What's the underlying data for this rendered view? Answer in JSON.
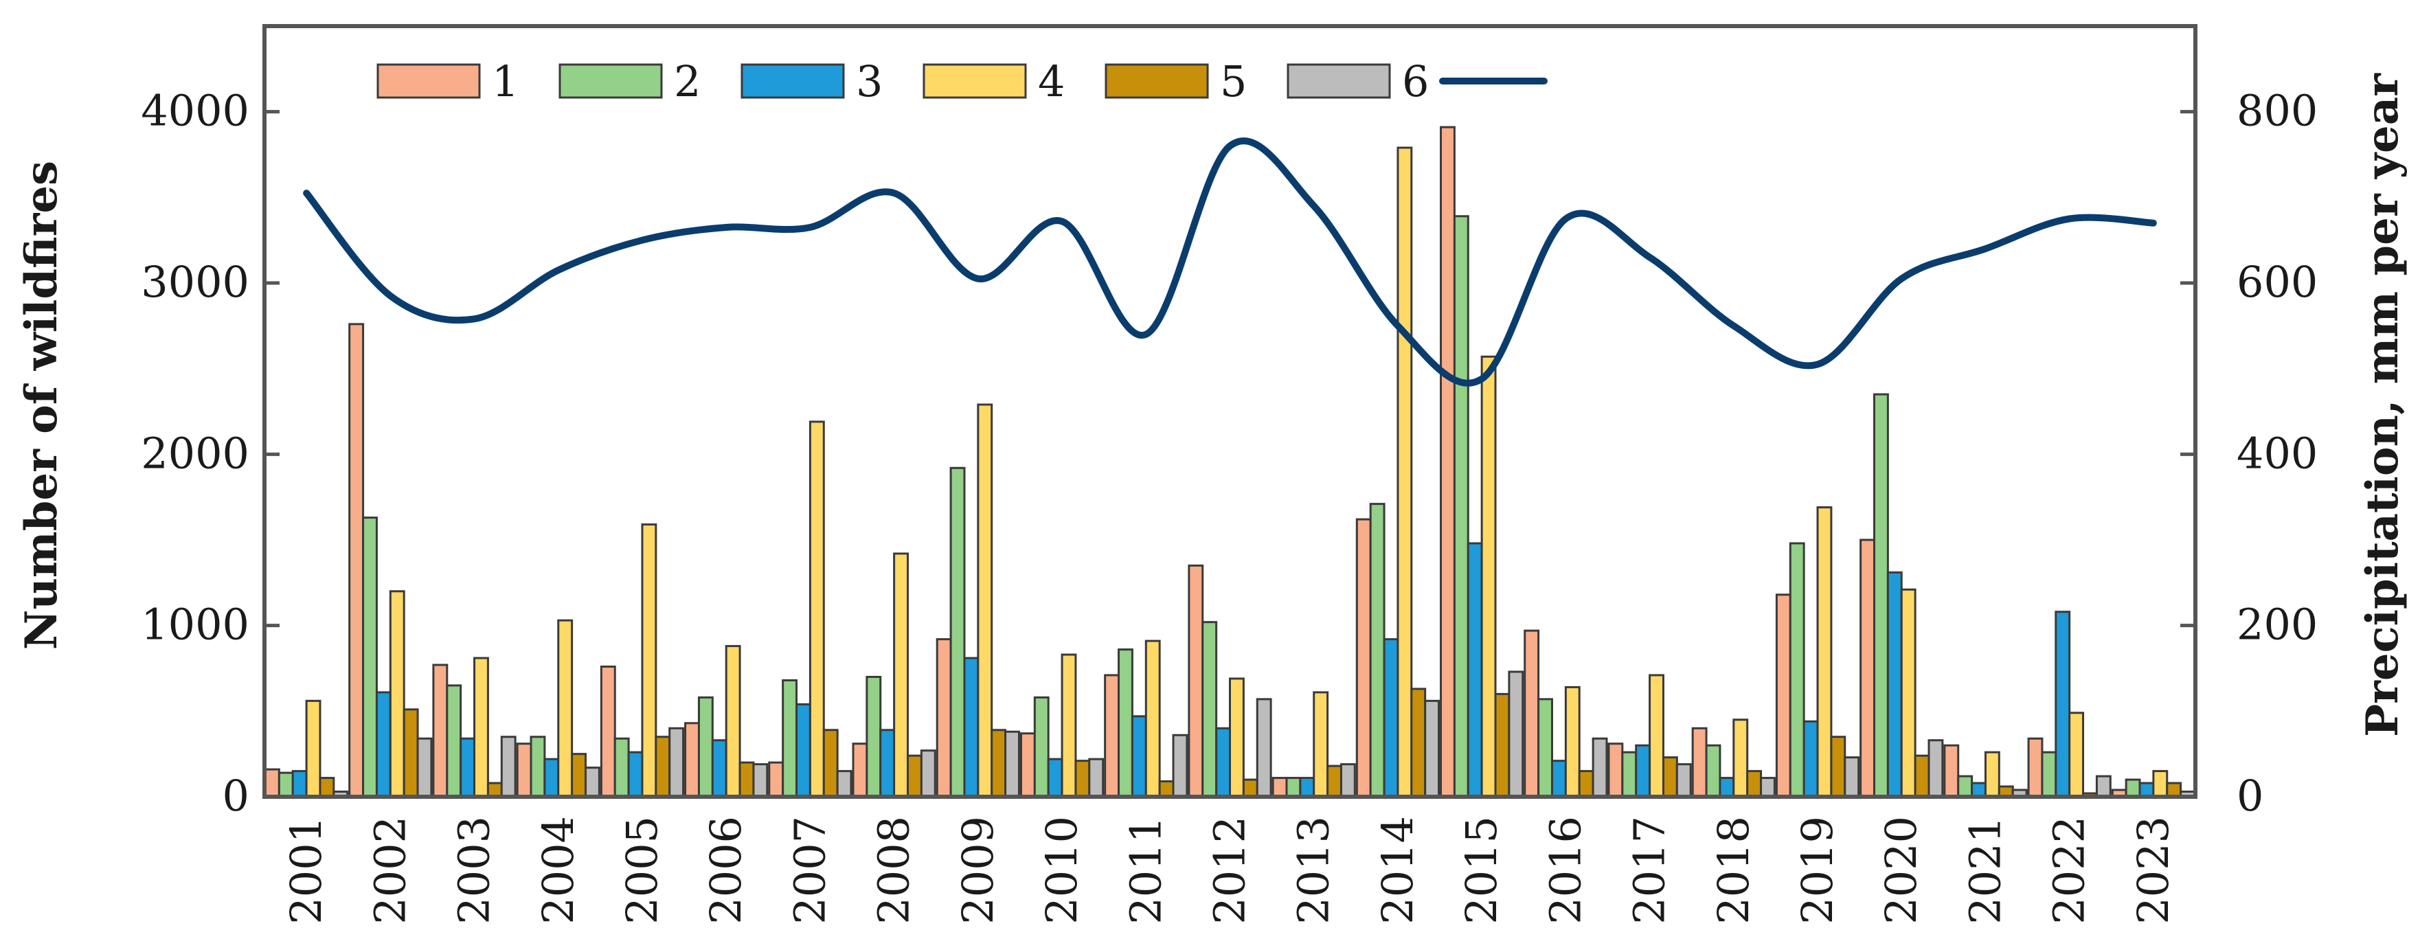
{
  "chart_data": {
    "type": "bar",
    "title": "",
    "xlabel": "",
    "ylabel": "Number of wildfires",
    "y2label": "Precipitation, mm per year",
    "ylim": [
      0,
      4500
    ],
    "y2lim": [
      0,
      900
    ],
    "yticks": [
      0,
      1000,
      2000,
      3000,
      4000
    ],
    "y2ticks": [
      0,
      200,
      400,
      600,
      800
    ],
    "categories": [
      "2001",
      "2002",
      "2003",
      "2004",
      "2005",
      "2006",
      "2007",
      "2008",
      "2009",
      "2010",
      "2011",
      "2012",
      "2013",
      "2014",
      "2015",
      "2016",
      "2017",
      "2018",
      "2019",
      "2020",
      "2021",
      "2022",
      "2023"
    ],
    "series": [
      {
        "name": "1",
        "color": "#f8ae8a",
        "values": [
          160,
          2760,
          770,
          310,
          760,
          430,
          200,
          310,
          920,
          370,
          710,
          1350,
          110,
          1620,
          3910,
          970,
          310,
          400,
          1180,
          1500,
          300,
          340,
          40
        ]
      },
      {
        "name": "2",
        "color": "#93d088",
        "values": [
          140,
          1630,
          650,
          350,
          340,
          580,
          680,
          700,
          1920,
          580,
          860,
          1020,
          110,
          1710,
          3390,
          570,
          260,
          300,
          1480,
          2350,
          120,
          260,
          100
        ]
      },
      {
        "name": "3",
        "color": "#1e9bd8",
        "values": [
          150,
          610,
          340,
          220,
          260,
          330,
          540,
          390,
          810,
          220,
          470,
          400,
          110,
          920,
          1480,
          210,
          300,
          110,
          440,
          1310,
          80,
          1080,
          80
        ]
      },
      {
        "name": "4",
        "color": "#ffd966",
        "values": [
          560,
          1200,
          810,
          1030,
          1590,
          880,
          2190,
          1420,
          2290,
          830,
          910,
          690,
          610,
          3790,
          2570,
          640,
          710,
          450,
          1690,
          1210,
          260,
          490,
          150
        ]
      },
      {
        "name": "5",
        "color": "#c8900a",
        "values": [
          110,
          510,
          80,
          250,
          350,
          200,
          390,
          240,
          390,
          210,
          90,
          100,
          180,
          630,
          600,
          150,
          230,
          150,
          350,
          240,
          60,
          20,
          80
        ]
      },
      {
        "name": "6",
        "color": "#bcbcbc",
        "values": [
          30,
          340,
          350,
          170,
          400,
          190,
          150,
          270,
          380,
          220,
          360,
          570,
          190,
          560,
          730,
          340,
          190,
          110,
          230,
          330,
          40,
          120,
          30
        ]
      }
    ],
    "line": {
      "name": "",
      "color": "#0a3d6e",
      "axis": "right",
      "values": [
        705,
        585,
        558,
        615,
        650,
        665,
        665,
        705,
        605,
        672,
        540,
        760,
        690,
        550,
        488,
        675,
        630,
        550,
        505,
        605,
        640,
        675,
        670
      ]
    },
    "legend": {
      "position": "top",
      "entries": [
        "1",
        "2",
        "3",
        "4",
        "5",
        "6",
        ""
      ]
    },
    "grid": false
  }
}
